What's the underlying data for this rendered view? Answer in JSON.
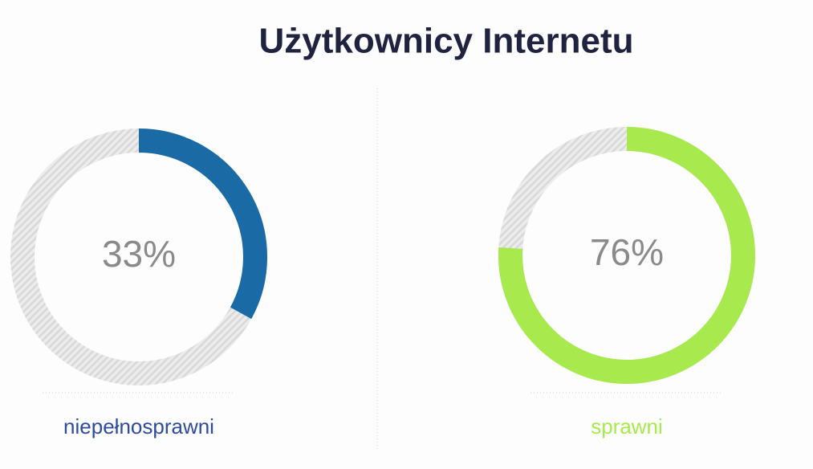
{
  "title": "Użytkownicy Internetu",
  "chart_data": [
    {
      "type": "donut",
      "categories": [
        "niepełnosprawni"
      ],
      "values": [
        33
      ],
      "value_labels": [
        "33%"
      ],
      "color": "#1a6aa6"
    },
    {
      "type": "donut",
      "categories": [
        "sprawni"
      ],
      "values": [
        76
      ],
      "value_labels": [
        "76%"
      ],
      "color": "#a8e94e"
    }
  ]
}
